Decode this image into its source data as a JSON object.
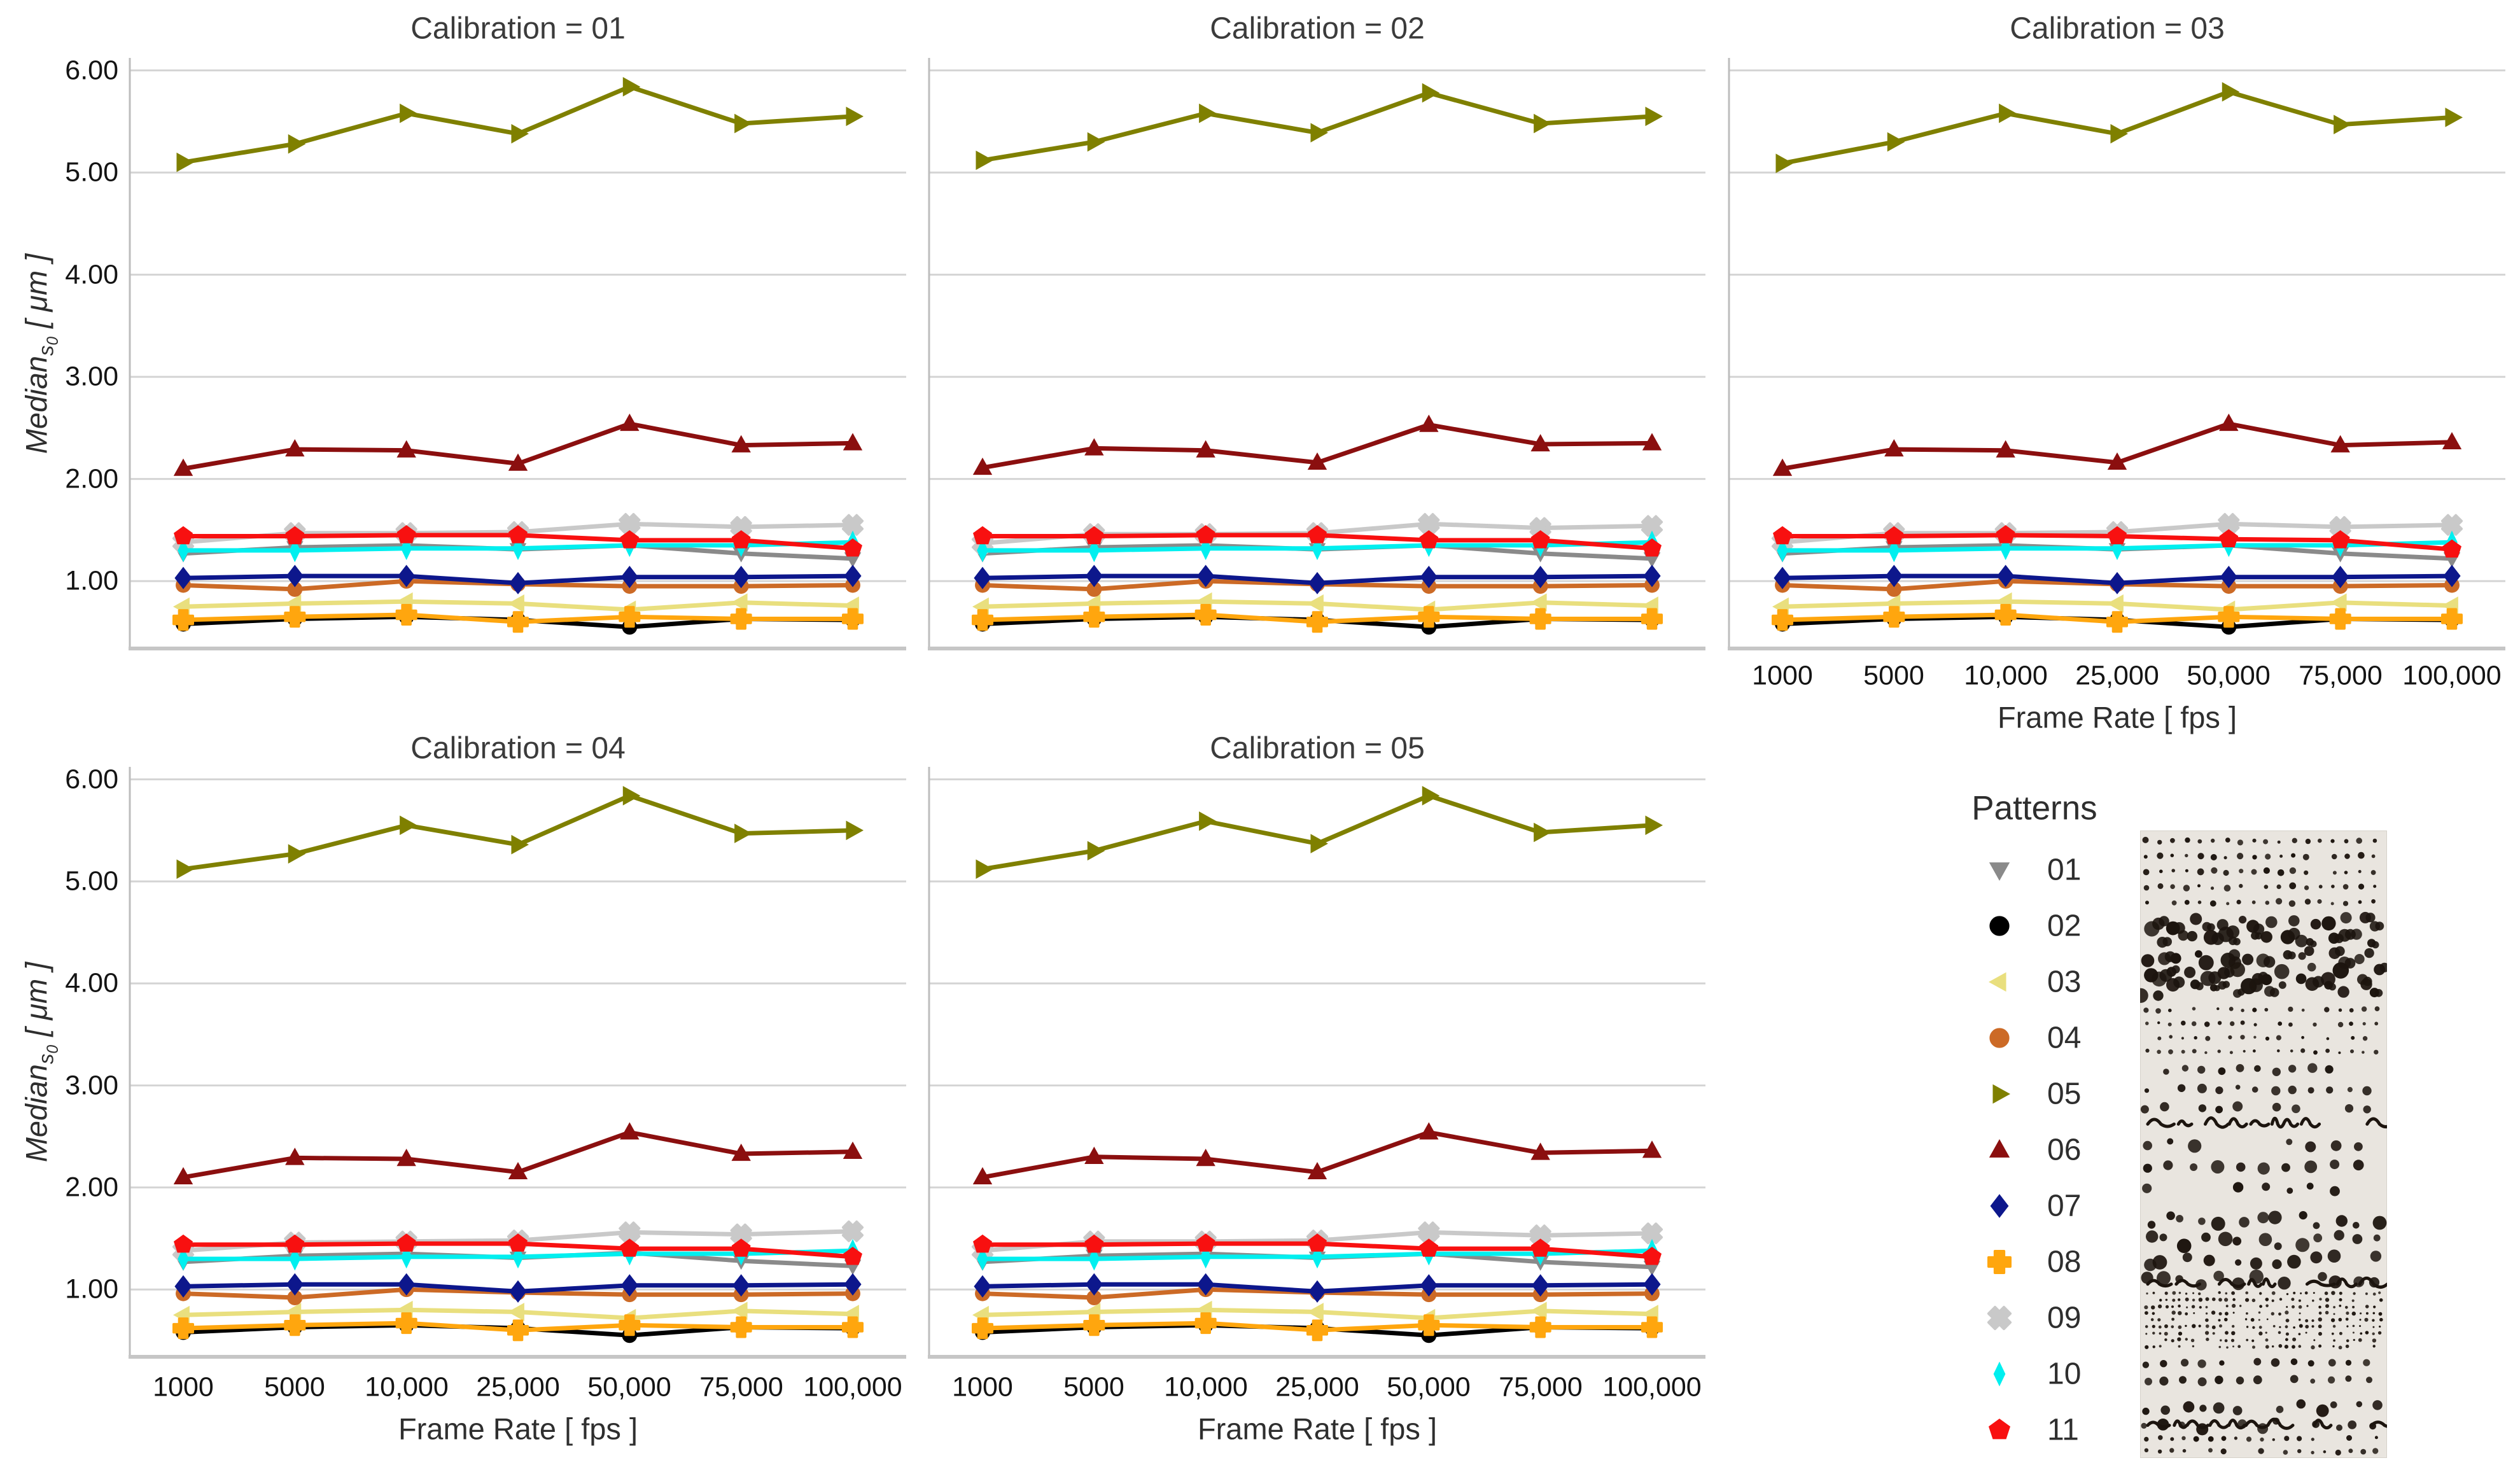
{
  "axes": {
    "y_label_main": "Median",
    "y_label_sub": "s",
    "y_label_subsub": "0",
    "y_label_units": " [ μm ]",
    "x_label": "Frame Rate [ fps ]",
    "y_ticks": [
      "6.00",
      "5.00",
      "4.00",
      "3.00",
      "2.00",
      "1.00"
    ],
    "x_ticks": [
      "1000",
      "5000",
      "10,000",
      "25,000",
      "50,000",
      "75,000",
      "100,000"
    ]
  },
  "legend": {
    "title": "Patterns",
    "entries": [
      {
        "label": "01",
        "marker": "triangle-down",
        "color": "#8a8a8a"
      },
      {
        "label": "02",
        "marker": "circle",
        "color": "#000000"
      },
      {
        "label": "03",
        "marker": "triangle-left",
        "color": "#e9df7e"
      },
      {
        "label": "04",
        "marker": "circle",
        "color": "#cc6a26"
      },
      {
        "label": "05",
        "marker": "triangle-right",
        "color": "#7f8000"
      },
      {
        "label": "06",
        "marker": "triangle-up",
        "color": "#8b0f0f"
      },
      {
        "label": "07",
        "marker": "diamond",
        "color": "#0d178c"
      },
      {
        "label": "08",
        "marker": "plus",
        "color": "#ffa60e"
      },
      {
        "label": "09",
        "marker": "x",
        "color": "#c9c9c9"
      },
      {
        "label": "10",
        "marker": "thin-diamond",
        "color": "#00efef"
      },
      {
        "label": "11",
        "marker": "pentagon",
        "color": "#f81010"
      }
    ]
  },
  "chart_data": [
    {
      "type": "line",
      "title": "Calibration = 01",
      "xlabel": "Frame Rate [ fps ]",
      "ylabel": "Median_s0 [ um ]",
      "x_categories": [
        "1000",
        "5000",
        "10,000",
        "25,000",
        "50,000",
        "75,000",
        "100,000"
      ],
      "ylim": [
        0.34,
        6.11
      ],
      "grid": "horizontal",
      "series": [
        {
          "name": "01",
          "marker": "triangle-down",
          "color": "#8a8a8a",
          "values": [
            1.27,
            1.33,
            1.35,
            1.31,
            1.35,
            1.27,
            1.22
          ]
        },
        {
          "name": "02",
          "marker": "circle",
          "color": "#000000",
          "values": [
            0.58,
            0.63,
            0.65,
            0.62,
            0.55,
            0.63,
            0.62
          ]
        },
        {
          "name": "03",
          "marker": "triangle-left",
          "color": "#e9df7e",
          "values": [
            0.75,
            0.78,
            0.8,
            0.78,
            0.72,
            0.79,
            0.76
          ]
        },
        {
          "name": "04",
          "marker": "circle",
          "color": "#cc6a26",
          "values": [
            0.96,
            0.92,
            1.0,
            0.97,
            0.95,
            0.95,
            0.96
          ]
        },
        {
          "name": "05",
          "marker": "triangle-right",
          "color": "#7f8000",
          "values": [
            5.1,
            5.28,
            5.58,
            5.38,
            5.84,
            5.48,
            5.55
          ]
        },
        {
          "name": "06",
          "marker": "triangle-up",
          "color": "#8b0f0f",
          "values": [
            2.1,
            2.29,
            2.28,
            2.15,
            2.54,
            2.33,
            2.35
          ]
        },
        {
          "name": "07",
          "marker": "diamond",
          "color": "#0d178c",
          "values": [
            1.03,
            1.05,
            1.05,
            0.98,
            1.04,
            1.04,
            1.05
          ]
        },
        {
          "name": "08",
          "marker": "plus",
          "color": "#ffa60e",
          "values": [
            0.62,
            0.65,
            0.67,
            0.6,
            0.65,
            0.63,
            0.63
          ]
        },
        {
          "name": "09",
          "marker": "x",
          "color": "#c9c9c9",
          "values": [
            1.38,
            1.47,
            1.47,
            1.48,
            1.56,
            1.53,
            1.55
          ]
        },
        {
          "name": "10",
          "marker": "thin-diamond",
          "color": "#00efef",
          "values": [
            1.3,
            1.3,
            1.32,
            1.32,
            1.35,
            1.35,
            1.38
          ]
        },
        {
          "name": "11",
          "marker": "pentagon",
          "color": "#f81010",
          "values": [
            1.44,
            1.44,
            1.45,
            1.45,
            1.4,
            1.4,
            1.32
          ]
        }
      ]
    },
    {
      "type": "line",
      "title": "Calibration = 02",
      "xlabel": "Frame Rate [ fps ]",
      "ylabel": "Median_s0 [ um ]",
      "x_categories": [
        "1000",
        "5000",
        "10,000",
        "25,000",
        "50,000",
        "75,000",
        "100,000"
      ],
      "ylim": [
        0.34,
        6.11
      ],
      "grid": "horizontal",
      "series": [
        {
          "name": "01",
          "marker": "triangle-down",
          "color": "#8a8a8a",
          "values": [
            1.27,
            1.33,
            1.35,
            1.31,
            1.35,
            1.27,
            1.22
          ]
        },
        {
          "name": "02",
          "marker": "circle",
          "color": "#000000",
          "values": [
            0.58,
            0.63,
            0.65,
            0.62,
            0.55,
            0.63,
            0.62
          ]
        },
        {
          "name": "03",
          "marker": "triangle-left",
          "color": "#e9df7e",
          "values": [
            0.75,
            0.78,
            0.8,
            0.78,
            0.72,
            0.79,
            0.76
          ]
        },
        {
          "name": "04",
          "marker": "circle",
          "color": "#cc6a26",
          "values": [
            0.96,
            0.92,
            1.0,
            0.97,
            0.95,
            0.95,
            0.96
          ]
        },
        {
          "name": "05",
          "marker": "triangle-right",
          "color": "#7f8000",
          "values": [
            5.12,
            5.3,
            5.58,
            5.39,
            5.78,
            5.48,
            5.55
          ]
        },
        {
          "name": "06",
          "marker": "triangle-up",
          "color": "#8b0f0f",
          "values": [
            2.11,
            2.3,
            2.28,
            2.16,
            2.53,
            2.34,
            2.35
          ]
        },
        {
          "name": "07",
          "marker": "diamond",
          "color": "#0d178c",
          "values": [
            1.03,
            1.05,
            1.05,
            0.98,
            1.04,
            1.04,
            1.05
          ]
        },
        {
          "name": "08",
          "marker": "plus",
          "color": "#ffa60e",
          "values": [
            0.62,
            0.65,
            0.67,
            0.6,
            0.65,
            0.63,
            0.63
          ]
        },
        {
          "name": "09",
          "marker": "x",
          "color": "#c9c9c9",
          "values": [
            1.37,
            1.46,
            1.46,
            1.47,
            1.56,
            1.52,
            1.54
          ]
        },
        {
          "name": "10",
          "marker": "thin-diamond",
          "color": "#00efef",
          "values": [
            1.3,
            1.3,
            1.32,
            1.32,
            1.35,
            1.35,
            1.38
          ]
        },
        {
          "name": "11",
          "marker": "pentagon",
          "color": "#f81010",
          "values": [
            1.44,
            1.44,
            1.45,
            1.45,
            1.4,
            1.4,
            1.32
          ]
        }
      ]
    },
    {
      "type": "line",
      "title": "Calibration = 03",
      "xlabel": "Frame Rate [ fps ]",
      "ylabel": "Median_s0 [ um ]",
      "x_categories": [
        "1000",
        "5000",
        "10,000",
        "25,000",
        "50,000",
        "75,000",
        "100,000"
      ],
      "ylim": [
        0.34,
        6.11
      ],
      "grid": "horizontal",
      "series": [
        {
          "name": "01",
          "marker": "triangle-down",
          "color": "#8a8a8a",
          "values": [
            1.27,
            1.33,
            1.35,
            1.31,
            1.35,
            1.27,
            1.22
          ]
        },
        {
          "name": "02",
          "marker": "circle",
          "color": "#000000",
          "values": [
            0.58,
            0.63,
            0.65,
            0.62,
            0.55,
            0.63,
            0.62
          ]
        },
        {
          "name": "03",
          "marker": "triangle-left",
          "color": "#e9df7e",
          "values": [
            0.75,
            0.78,
            0.8,
            0.78,
            0.72,
            0.79,
            0.76
          ]
        },
        {
          "name": "04",
          "marker": "circle",
          "color": "#cc6a26",
          "values": [
            0.96,
            0.92,
            1.0,
            0.97,
            0.95,
            0.95,
            0.96
          ]
        },
        {
          "name": "05",
          "marker": "triangle-right",
          "color": "#7f8000",
          "values": [
            5.09,
            5.3,
            5.58,
            5.38,
            5.79,
            5.47,
            5.54
          ]
        },
        {
          "name": "06",
          "marker": "triangle-up",
          "color": "#8b0f0f",
          "values": [
            2.1,
            2.29,
            2.28,
            2.16,
            2.54,
            2.33,
            2.36
          ]
        },
        {
          "name": "07",
          "marker": "diamond",
          "color": "#0d178c",
          "values": [
            1.03,
            1.05,
            1.05,
            0.98,
            1.04,
            1.04,
            1.05
          ]
        },
        {
          "name": "08",
          "marker": "plus",
          "color": "#ffa60e",
          "values": [
            0.62,
            0.65,
            0.67,
            0.6,
            0.65,
            0.63,
            0.63
          ]
        },
        {
          "name": "09",
          "marker": "x",
          "color": "#c9c9c9",
          "values": [
            1.38,
            1.47,
            1.47,
            1.48,
            1.56,
            1.53,
            1.55
          ]
        },
        {
          "name": "10",
          "marker": "thin-diamond",
          "color": "#00efef",
          "values": [
            1.3,
            1.3,
            1.32,
            1.32,
            1.35,
            1.35,
            1.38
          ]
        },
        {
          "name": "11",
          "marker": "pentagon",
          "color": "#f81010",
          "values": [
            1.44,
            1.44,
            1.45,
            1.44,
            1.41,
            1.4,
            1.31
          ]
        }
      ]
    },
    {
      "type": "line",
      "title": "Calibration = 04",
      "xlabel": "Frame Rate [ fps ]",
      "ylabel": "Median_s0 [ um ]",
      "x_categories": [
        "1000",
        "5000",
        "10,000",
        "25,000",
        "50,000",
        "75,000",
        "100,000"
      ],
      "ylim": [
        0.34,
        6.11
      ],
      "grid": "horizontal",
      "series": [
        {
          "name": "01",
          "marker": "triangle-down",
          "color": "#8a8a8a",
          "values": [
            1.27,
            1.33,
            1.35,
            1.31,
            1.36,
            1.28,
            1.23
          ]
        },
        {
          "name": "02",
          "marker": "circle",
          "color": "#000000",
          "values": [
            0.58,
            0.63,
            0.65,
            0.62,
            0.55,
            0.63,
            0.62
          ]
        },
        {
          "name": "03",
          "marker": "triangle-left",
          "color": "#e9df7e",
          "values": [
            0.75,
            0.78,
            0.8,
            0.78,
            0.72,
            0.79,
            0.76
          ]
        },
        {
          "name": "04",
          "marker": "circle",
          "color": "#cc6a26",
          "values": [
            0.96,
            0.92,
            1.0,
            0.97,
            0.95,
            0.95,
            0.96
          ]
        },
        {
          "name": "05",
          "marker": "triangle-right",
          "color": "#7f8000",
          "values": [
            5.12,
            5.27,
            5.55,
            5.36,
            5.84,
            5.47,
            5.5
          ]
        },
        {
          "name": "06",
          "marker": "triangle-up",
          "color": "#8b0f0f",
          "values": [
            2.1,
            2.29,
            2.28,
            2.15,
            2.54,
            2.33,
            2.35
          ]
        },
        {
          "name": "07",
          "marker": "diamond",
          "color": "#0d178c",
          "values": [
            1.03,
            1.05,
            1.05,
            0.98,
            1.04,
            1.04,
            1.05
          ]
        },
        {
          "name": "08",
          "marker": "plus",
          "color": "#ffa60e",
          "values": [
            0.62,
            0.65,
            0.67,
            0.6,
            0.65,
            0.63,
            0.63
          ]
        },
        {
          "name": "09",
          "marker": "x",
          "color": "#c9c9c9",
          "values": [
            1.38,
            1.46,
            1.47,
            1.48,
            1.56,
            1.54,
            1.57
          ]
        },
        {
          "name": "10",
          "marker": "thin-diamond",
          "color": "#00efef",
          "values": [
            1.3,
            1.3,
            1.32,
            1.32,
            1.35,
            1.35,
            1.38
          ]
        },
        {
          "name": "11",
          "marker": "pentagon",
          "color": "#f81010",
          "values": [
            1.44,
            1.44,
            1.45,
            1.45,
            1.4,
            1.4,
            1.32
          ]
        }
      ]
    },
    {
      "type": "line",
      "title": "Calibration = 05",
      "xlabel": "Frame Rate [ fps ]",
      "ylabel": "Median_s0 [ um ]",
      "x_categories": [
        "1000",
        "5000",
        "10,000",
        "25,000",
        "50,000",
        "75,000",
        "100,000"
      ],
      "ylim": [
        0.34,
        6.11
      ],
      "grid": "horizontal",
      "series": [
        {
          "name": "01",
          "marker": "triangle-down",
          "color": "#8a8a8a",
          "values": [
            1.27,
            1.33,
            1.35,
            1.31,
            1.35,
            1.27,
            1.22
          ]
        },
        {
          "name": "02",
          "marker": "circle",
          "color": "#000000",
          "values": [
            0.58,
            0.63,
            0.65,
            0.62,
            0.55,
            0.63,
            0.62
          ]
        },
        {
          "name": "03",
          "marker": "triangle-left",
          "color": "#e9df7e",
          "values": [
            0.75,
            0.78,
            0.8,
            0.78,
            0.72,
            0.79,
            0.76
          ]
        },
        {
          "name": "04",
          "marker": "circle",
          "color": "#cc6a26",
          "values": [
            0.96,
            0.92,
            1.0,
            0.97,
            0.95,
            0.95,
            0.96
          ]
        },
        {
          "name": "05",
          "marker": "triangle-right",
          "color": "#7f8000",
          "values": [
            5.12,
            5.3,
            5.59,
            5.37,
            5.84,
            5.48,
            5.55
          ]
        },
        {
          "name": "06",
          "marker": "triangle-up",
          "color": "#8b0f0f",
          "values": [
            2.1,
            2.3,
            2.28,
            2.15,
            2.54,
            2.34,
            2.36
          ]
        },
        {
          "name": "07",
          "marker": "diamond",
          "color": "#0d178c",
          "values": [
            1.03,
            1.05,
            1.05,
            0.98,
            1.04,
            1.04,
            1.05
          ]
        },
        {
          "name": "08",
          "marker": "plus",
          "color": "#ffa60e",
          "values": [
            0.62,
            0.65,
            0.67,
            0.6,
            0.65,
            0.63,
            0.63
          ]
        },
        {
          "name": "09",
          "marker": "x",
          "color": "#c9c9c9",
          "values": [
            1.38,
            1.47,
            1.47,
            1.48,
            1.56,
            1.53,
            1.55
          ]
        },
        {
          "name": "10",
          "marker": "thin-diamond",
          "color": "#00efef",
          "values": [
            1.3,
            1.3,
            1.32,
            1.32,
            1.35,
            1.35,
            1.38
          ]
        },
        {
          "name": "11",
          "marker": "pentagon",
          "color": "#f81010",
          "values": [
            1.44,
            1.44,
            1.45,
            1.45,
            1.4,
            1.4,
            1.32
          ]
        }
      ]
    }
  ]
}
